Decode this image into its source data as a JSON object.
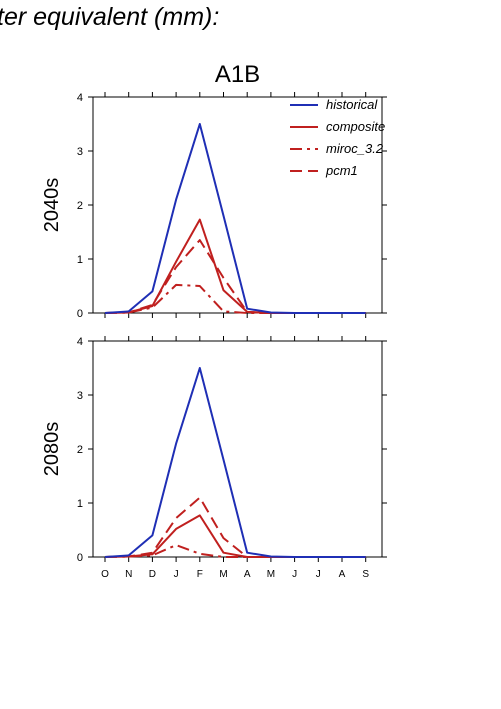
{
  "figure": {
    "title": "ter equivalent (mm):"
  },
  "chart_data": [
    {
      "type": "line",
      "title": "A1B",
      "ylabel": "2040s",
      "xlabel": "",
      "categories": [
        "O",
        "N",
        "D",
        "J",
        "F",
        "M",
        "A",
        "M",
        "J",
        "J",
        "A",
        "S"
      ],
      "ylim": [
        0,
        4
      ],
      "yticks": [
        0,
        1,
        2,
        3,
        4
      ],
      "legend_position": "top-right",
      "grid": false,
      "series": [
        {
          "name": "historical",
          "color": "#1f2fb5",
          "dash": "solid",
          "values": [
            0.0,
            0.03,
            0.4,
            2.1,
            3.5,
            1.8,
            0.08,
            0.01,
            0.0,
            0.0,
            0.0,
            0.0
          ]
        },
        {
          "name": "composite",
          "color": "#c0201f",
          "dash": "solid",
          "values": [
            0.0,
            0.01,
            0.13,
            0.95,
            1.73,
            0.42,
            0.02,
            0.0,
            0.0,
            0.0,
            0.0,
            0.0
          ]
        },
        {
          "name": "miroc_3.2",
          "color": "#c0201f",
          "dash": "dashdot",
          "values": [
            0.0,
            0.01,
            0.1,
            0.52,
            0.5,
            0.03,
            0.0,
            0.0,
            0.0,
            0.0,
            0.0,
            0.0
          ]
        },
        {
          "name": "pcm1",
          "color": "#c0201f",
          "dash": "dash",
          "values": [
            0.0,
            0.01,
            0.15,
            0.85,
            1.35,
            0.65,
            0.02,
            0.0,
            0.0,
            0.0,
            0.0,
            0.0
          ]
        }
      ]
    },
    {
      "type": "line",
      "title": "",
      "ylabel": "2080s",
      "xlabel": "",
      "categories": [
        "O",
        "N",
        "D",
        "J",
        "F",
        "M",
        "A",
        "M",
        "J",
        "J",
        "A",
        "S"
      ],
      "ylim": [
        0,
        4
      ],
      "yticks": [
        0,
        1,
        2,
        3,
        4
      ],
      "grid": false,
      "series": [
        {
          "name": "historical",
          "color": "#1f2fb5",
          "dash": "solid",
          "values": [
            0.0,
            0.03,
            0.4,
            2.1,
            3.5,
            1.8,
            0.08,
            0.01,
            0.0,
            0.0,
            0.0,
            0.0
          ]
        },
        {
          "name": "composite",
          "color": "#c0201f",
          "dash": "solid",
          "values": [
            0.0,
            0.01,
            0.05,
            0.52,
            0.77,
            0.08,
            0.0,
            0.0,
            0.0,
            0.0,
            0.0,
            0.0
          ]
        },
        {
          "name": "miroc_3.2",
          "color": "#c0201f",
          "dash": "dashdot",
          "values": [
            0.0,
            0.01,
            0.03,
            0.22,
            0.06,
            0.0,
            0.0,
            0.0,
            0.0,
            0.0,
            0.0,
            0.0
          ]
        },
        {
          "name": "pcm1",
          "color": "#c0201f",
          "dash": "dash",
          "values": [
            0.0,
            0.01,
            0.08,
            0.72,
            1.1,
            0.35,
            0.0,
            0.0,
            0.0,
            0.0,
            0.0,
            0.0
          ]
        }
      ]
    }
  ]
}
